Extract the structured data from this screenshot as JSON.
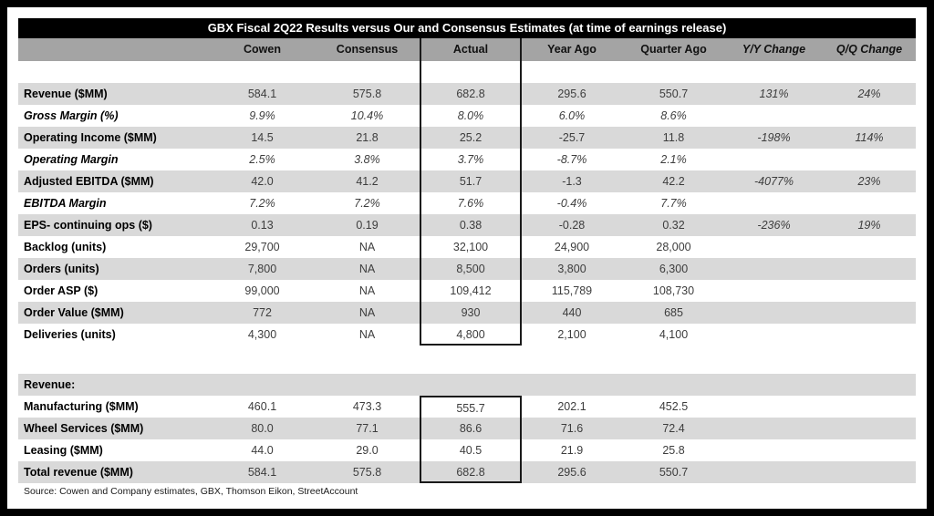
{
  "title": "GBX Fiscal 2Q22 Results versus Our and Consensus Estimates (at time of earnings release)",
  "source": "Source: Cowen and Company estimates, GBX, Thomson Eikon, StreetAccount",
  "colors": {
    "title_bg": "#000000",
    "title_text": "#ffffff",
    "header_bg": "#a4a4a4",
    "stripe_bg": "#d9d9d9",
    "value_text": "#3d3d3d",
    "box_border": "#1a1a1a"
  },
  "chart_data": {
    "type": "table",
    "title": "GBX Fiscal 2Q22 Results versus Our and Consensus Estimates (at time of earnings release)",
    "columns": [
      "",
      "Cowen",
      "Consensus",
      "Actual",
      "Year Ago",
      "Quarter Ago",
      "Y/Y Change",
      "Q/Q Change"
    ],
    "highlighted_column": "Actual",
    "metrics": [
      {
        "label": "Revenue ($MM)",
        "italic": false,
        "stripe": true,
        "values": [
          "584.1",
          "575.8",
          "682.8",
          "295.6",
          "550.7",
          "131%",
          "24%"
        ]
      },
      {
        "label": "Gross Margin (%)",
        "italic": true,
        "stripe": false,
        "values": [
          "9.9%",
          "10.4%",
          "8.0%",
          "6.0%",
          "8.6%",
          "",
          ""
        ]
      },
      {
        "label": "Operating Income ($MM)",
        "italic": false,
        "stripe": true,
        "values": [
          "14.5",
          "21.8",
          "25.2",
          "-25.7",
          "11.8",
          "-198%",
          "114%"
        ]
      },
      {
        "label": "Operating Margin",
        "italic": true,
        "stripe": false,
        "values": [
          "2.5%",
          "3.8%",
          "3.7%",
          "-8.7%",
          "2.1%",
          "",
          ""
        ]
      },
      {
        "label": "Adjusted EBITDA ($MM)",
        "italic": false,
        "stripe": true,
        "values": [
          "42.0",
          "41.2",
          "51.7",
          "-1.3",
          "42.2",
          "-4077%",
          "23%"
        ]
      },
      {
        "label": "EBITDA Margin",
        "italic": true,
        "stripe": false,
        "values": [
          "7.2%",
          "7.2%",
          "7.6%",
          "-0.4%",
          "7.7%",
          "",
          ""
        ]
      },
      {
        "label": "EPS- continuing ops ($)",
        "italic": false,
        "stripe": true,
        "values": [
          "0.13",
          "0.19",
          "0.38",
          "-0.28",
          "0.32",
          "-236%",
          "19%"
        ]
      },
      {
        "label": "Backlog (units)",
        "italic": false,
        "stripe": false,
        "values": [
          "29,700",
          "NA",
          "32,100",
          "24,900",
          "28,000",
          "",
          ""
        ]
      },
      {
        "label": "Orders (units)",
        "italic": false,
        "stripe": true,
        "values": [
          "7,800",
          "NA",
          "8,500",
          "3,800",
          "6,300",
          "",
          ""
        ]
      },
      {
        "label": "Order ASP ($)",
        "italic": false,
        "stripe": false,
        "values": [
          "99,000",
          "NA",
          "109,412",
          "115,789",
          "108,730",
          "",
          ""
        ]
      },
      {
        "label": "Order Value ($MM)",
        "italic": false,
        "stripe": true,
        "values": [
          "772",
          "NA",
          "930",
          "440",
          "685",
          "",
          ""
        ]
      },
      {
        "label": "Deliveries (units)",
        "italic": false,
        "stripe": false,
        "values": [
          "4,300",
          "NA",
          "4,800",
          "2,100",
          "4,100",
          "",
          ""
        ]
      }
    ],
    "revenue_section": {
      "header": "Revenue:",
      "rows": [
        {
          "label": "Manufacturing ($MM)",
          "italic": false,
          "stripe": false,
          "values": [
            "460.1",
            "473.3",
            "555.7",
            "202.1",
            "452.5",
            "",
            ""
          ]
        },
        {
          "label": "Wheel Services ($MM)",
          "italic": false,
          "stripe": true,
          "values": [
            "80.0",
            "77.1",
            "86.6",
            "71.6",
            "72.4",
            "",
            ""
          ]
        },
        {
          "label": "Leasing ($MM)",
          "italic": false,
          "stripe": false,
          "values": [
            "44.0",
            "29.0",
            "40.5",
            "21.9",
            "25.8",
            "",
            ""
          ]
        },
        {
          "label": "Total revenue ($MM)",
          "italic": false,
          "stripe": true,
          "values": [
            "584.1",
            "575.8",
            "682.8",
            "295.6",
            "550.7",
            "",
            ""
          ]
        }
      ]
    }
  }
}
